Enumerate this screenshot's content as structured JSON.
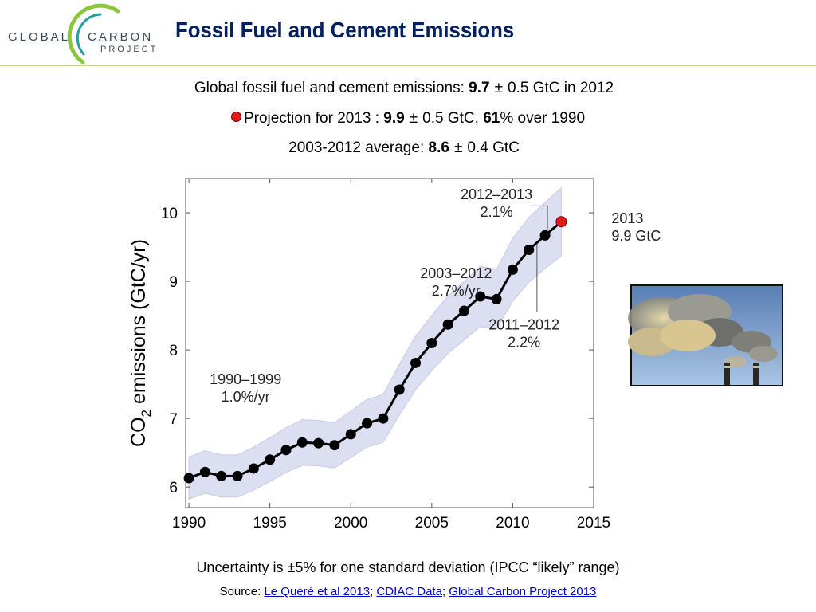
{
  "logo": {
    "word1": "GLOBAL",
    "word2": "CARBON",
    "word3": "PROJECT",
    "colors": {
      "arc_green": "#8cc63f",
      "arc_teal": "#2a9d9f",
      "text": "#3a4a55"
    }
  },
  "title": "Fossil Fuel and Cement Emissions",
  "summary": {
    "line1": {
      "prefix": "Global fossil fuel and cement emissions: ",
      "value": "9.7",
      "pm": "±",
      "rest": "0.5 GtC in 2012"
    },
    "line2": {
      "prefix": "Projection for 2013 : ",
      "value": "9.9",
      "pm": "±",
      "rest1": "0.5 GtC, ",
      "pct": "61",
      "rest2": "% over 1990"
    },
    "line3": {
      "prefix": "2003-2012 average:  ",
      "value": "8.6",
      "pm": "±",
      "rest": "0.4 GtC"
    }
  },
  "chart_data": {
    "type": "line",
    "ylabel_main": "CO",
    "ylabel_sub": "2",
    "ylabel_rest": " emissions (GtC/yr)",
    "xlim": [
      1989.8,
      2015
    ],
    "ylim": [
      5.7,
      10.5
    ],
    "xticks": [
      1990,
      1995,
      2000,
      2005,
      2010,
      2015
    ],
    "yticks": [
      6,
      7,
      8,
      9,
      10
    ],
    "uncertainty_fraction": 0.05,
    "band_color": "#dcdef2",
    "line_color": "#000000",
    "projection_color": "#e21c1c",
    "series": [
      {
        "x": [
          1990,
          1991,
          1992,
          1993,
          1994,
          1995,
          1996,
          1997,
          1998,
          1999,
          2000,
          2001,
          2002,
          2003,
          2004,
          2005,
          2006,
          2007,
          2008,
          2009,
          2010,
          2011,
          2012
        ],
        "values": [
          6.13,
          6.22,
          6.16,
          6.16,
          6.27,
          6.4,
          6.54,
          6.65,
          6.64,
          6.61,
          6.77,
          6.93,
          7.0,
          7.42,
          7.81,
          8.1,
          8.37,
          8.57,
          8.78,
          8.74,
          9.17,
          9.46,
          9.67
        ]
      }
    ],
    "projection": {
      "x": 2013,
      "value": 9.87
    },
    "annotations": [
      {
        "id": "a1",
        "line1": "1990–1999",
        "line2": "1.0%/yr",
        "x": 1993.5,
        "y": 7.5
      },
      {
        "id": "a2",
        "line1": "2003–2012",
        "line2": "2.7%/yr",
        "x": 2006.5,
        "y": 9.05
      },
      {
        "id": "a3",
        "line1": "2012–2013",
        "line2": "2.1%",
        "x": 2009.0,
        "y": 10.2
      },
      {
        "id": "a4",
        "line1": "2011–2012",
        "line2": "2.2%",
        "x": 2010.7,
        "y": 8.3
      },
      {
        "id": "a5",
        "line1": "2013",
        "line2": "9.9 GtC",
        "x": 2016.1,
        "y": 9.85,
        "align": "start"
      }
    ]
  },
  "footer": {
    "uncertainty": "Uncertainty is ±5% for one standard deviation (IPCC “likely” range)",
    "source_label": "Source: ",
    "links": [
      "Le Quéré et al 2013",
      "CDIAC Data",
      "Global Carbon Project 2013"
    ],
    "separator": "; "
  }
}
